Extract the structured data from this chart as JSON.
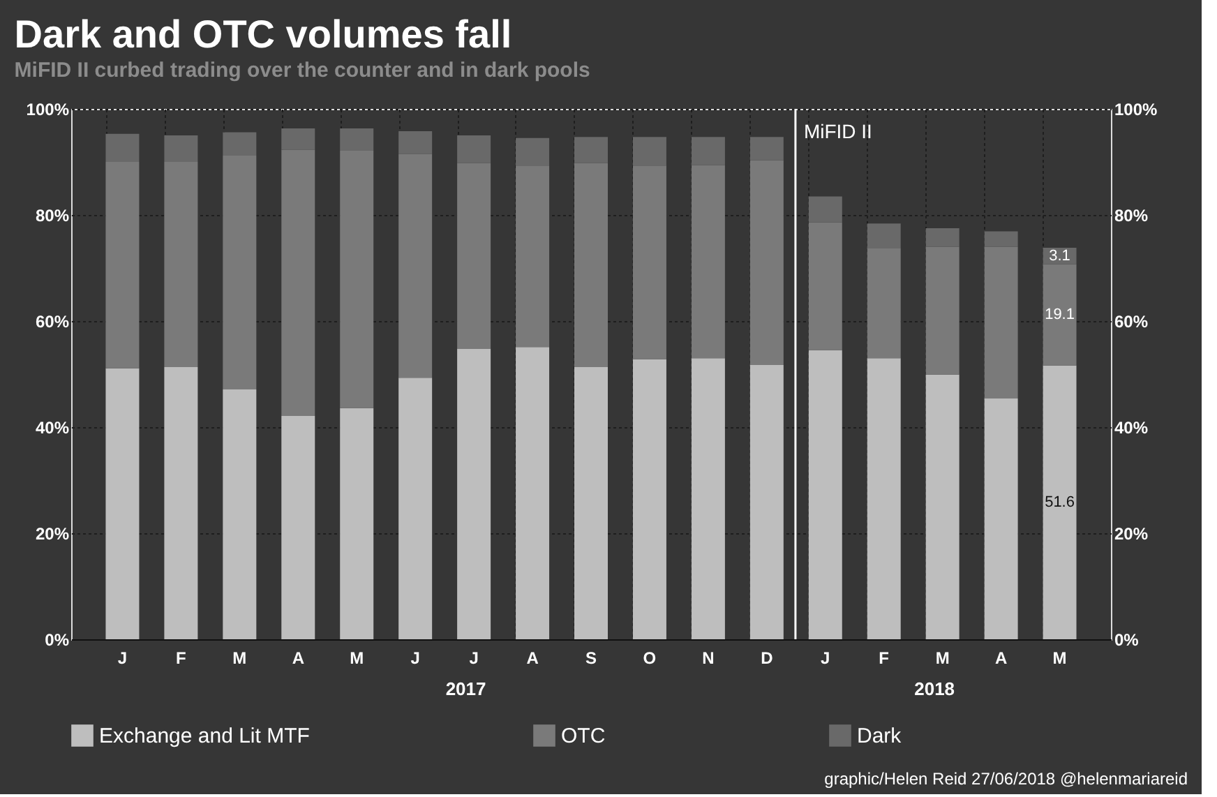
{
  "chart_data": {
    "type": "bar",
    "stacked": true,
    "title": "Dark and OTC volumes fall",
    "subtitle": "MiFID II curbed trading over the counter and in dark pools",
    "categories": [
      "J",
      "F",
      "M",
      "A",
      "M",
      "J",
      "J",
      "A",
      "S",
      "O",
      "N",
      "D",
      "J",
      "F",
      "M",
      "A",
      "M"
    ],
    "series": [
      {
        "name": "Exchange and Lit MTF",
        "color": "#bebebe",
        "values": [
          51.1,
          51.3,
          47.1,
          42.1,
          43.6,
          49.3,
          54.8,
          55.1,
          51.3,
          52.8,
          53.0,
          51.7,
          54.5,
          53.0,
          49.9,
          45.4,
          51.6
        ],
        "value_labels": [
          null,
          null,
          null,
          null,
          null,
          null,
          null,
          null,
          null,
          null,
          null,
          null,
          null,
          null,
          null,
          null,
          "51.6"
        ]
      },
      {
        "name": "OTC",
        "color": "#7a7a7a",
        "values": [
          38.9,
          38.7,
          44.1,
          50.2,
          48.5,
          42.2,
          35.0,
          34.1,
          38.5,
          36.5,
          36.4,
          38.6,
          24.1,
          20.7,
          24.1,
          28.6,
          19.1
        ],
        "value_labels": [
          null,
          null,
          null,
          null,
          null,
          null,
          null,
          null,
          null,
          null,
          null,
          null,
          null,
          null,
          null,
          null,
          "19.1"
        ]
      },
      {
        "name": "Dark",
        "color": "#696969",
        "values": [
          5.3,
          5.0,
          4.4,
          4.0,
          4.2,
          4.3,
          5.2,
          5.3,
          4.9,
          5.4,
          5.3,
          4.4,
          4.9,
          4.7,
          3.5,
          2.9,
          3.1
        ],
        "value_labels": [
          null,
          null,
          null,
          null,
          null,
          null,
          null,
          null,
          null,
          null,
          null,
          null,
          null,
          null,
          null,
          null,
          "3.1"
        ]
      }
    ],
    "ylim": [
      0,
      100
    ],
    "yticks": [
      {
        "value": 0,
        "label": "0%"
      },
      {
        "value": 20,
        "label": "20%"
      },
      {
        "value": 40,
        "label": "40%"
      },
      {
        "value": 60,
        "label": "60%"
      },
      {
        "value": 80,
        "label": "80%"
      },
      {
        "value": 100,
        "label": "100%"
      }
    ],
    "y2lim": [
      0,
      100
    ],
    "y2ticks": [
      {
        "value": 0,
        "label": "0%"
      },
      {
        "value": 20,
        "label": "20%"
      },
      {
        "value": 40,
        "label": "40%"
      },
      {
        "value": 60,
        "label": "60%"
      },
      {
        "value": 80,
        "label": "80%"
      },
      {
        "value": 100,
        "label": "100%"
      }
    ],
    "ref_lines": [
      {
        "axis": "x",
        "value": "D",
        "label": "MiFID II",
        "color": "#ffffff"
      }
    ],
    "annotations": [
      "2017",
      "2018",
      "graphic/Helen Reid 27/06/2018 @helenmariareid"
    ],
    "grid": true,
    "legend": "bottom"
  }
}
